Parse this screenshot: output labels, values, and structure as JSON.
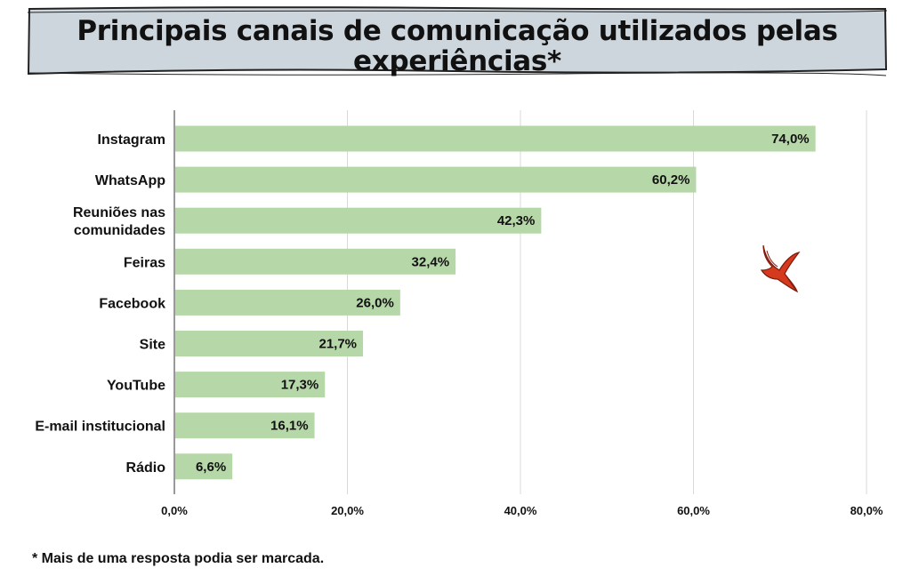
{
  "title": "Principais canais de comunicação utilizados pelas experiências*",
  "footnote": "* Mais de uma resposta podia ser marcada.",
  "colors": {
    "bar": "#b6d7a8",
    "banner": "#ccd6dc",
    "grid": "#d9d9d9",
    "axis": "#333333",
    "bird": "#d63a1e"
  },
  "chart_data": {
    "type": "bar",
    "orientation": "horizontal",
    "title": "Principais canais de comunicação utilizados pelas experiências*",
    "categories": [
      "Instagram",
      "WhatsApp",
      "Reuniões nas\ncomunidades",
      "Feiras",
      "Facebook",
      "Site",
      "YouTube",
      "E-mail institucional",
      "Rádio"
    ],
    "values": [
      74.0,
      60.2,
      42.3,
      32.4,
      26.0,
      21.7,
      17.3,
      16.1,
      6.6
    ],
    "value_labels": [
      "74,0%",
      "60,2%",
      "42,3%",
      "32,4%",
      "26,0%",
      "21,7%",
      "17,3%",
      "16,1%",
      "6,6%"
    ],
    "xlim": [
      0,
      80
    ],
    "x_ticks": [
      0,
      20,
      40,
      60,
      80
    ],
    "x_tick_labels": [
      "0,0%",
      "20,0%",
      "40,0%",
      "60,0%",
      "80,0%"
    ],
    "xlabel": "",
    "ylabel": "",
    "grid": true,
    "legend": "none"
  }
}
